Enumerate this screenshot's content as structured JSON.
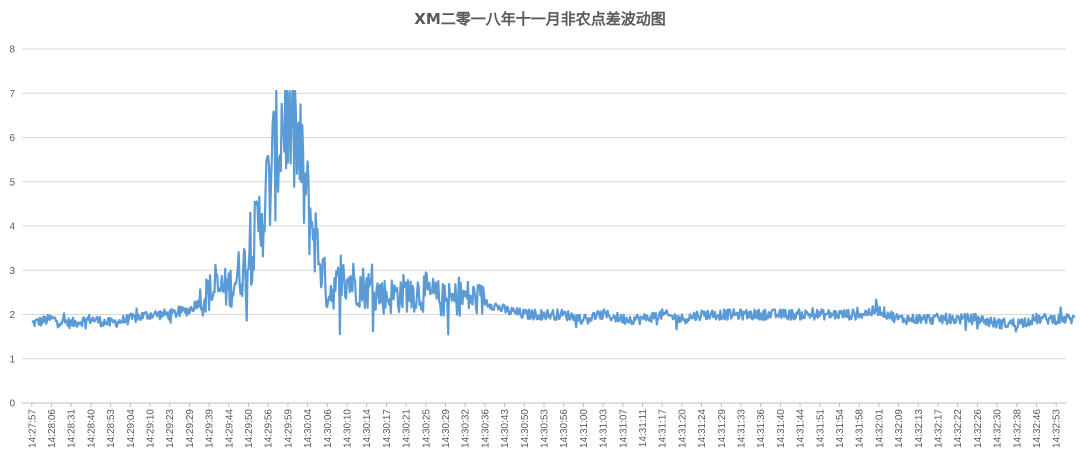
{
  "chart_data": {
    "type": "line",
    "title": "XM二零一八年十一月非农点差波动图",
    "xlabel": "",
    "ylabel": "",
    "ylim": [
      0,
      8
    ],
    "yticks": [
      "0",
      "1",
      "2",
      "3",
      "4",
      "5",
      "6",
      "7",
      "8"
    ],
    "grid": true,
    "legend": "none",
    "colors": {
      "line": "#5B9BD5",
      "grid": "#D9D9D9",
      "axis": "#BFBFBF",
      "text": "#595959"
    },
    "x": [
      "14:27:57",
      "14:28:06",
      "14:28:31",
      "14:28:40",
      "14:28:53",
      "14:29:04",
      "14:29:10",
      "14:29:23",
      "14:29:29",
      "14:29:39",
      "14:29:44",
      "14:29:50",
      "14:29:56",
      "14:29:59",
      "14:30:04",
      "14:30:06",
      "14:30:10",
      "14:30:14",
      "14:30:17",
      "14:30:21",
      "14:30:25",
      "14:30:29",
      "14:30:32",
      "14:30:36",
      "14:30:43",
      "14:30:50",
      "14:30:53",
      "14:30:56",
      "14:31:00",
      "14:31:03",
      "14:31:07",
      "14:31:11",
      "14:31:17",
      "14:31:20",
      "14:31:24",
      "14:31:29",
      "14:31:33",
      "14:31:36",
      "14:31:40",
      "14:31:44",
      "14:31:51",
      "14:31:54",
      "14:31:58",
      "14:32:01",
      "14:32:09",
      "14:32:13",
      "14:32:17",
      "14:32:22",
      "14:32:26",
      "14:32:30",
      "14:32:38",
      "14:32:46",
      "14:32:53"
    ],
    "series": [
      {
        "values": [
          1.8,
          1.9,
          1.8,
          1.9,
          1.8,
          1.9,
          2.0,
          2.0,
          2.1,
          2.5,
          2.6,
          3.2,
          4.8,
          7.0,
          4.5,
          2.5,
          2.8,
          2.6,
          2.4,
          2.5,
          2.5,
          2.3,
          2.4,
          2.3,
          2.1,
          2.0,
          2.0,
          2.0,
          1.9,
          2.0,
          1.9,
          1.9,
          2.0,
          1.9,
          2.0,
          2.0,
          2.0,
          2.0,
          2.0,
          2.0,
          2.0,
          2.0,
          2.0,
          2.1,
          1.9,
          1.9,
          1.9,
          1.9,
          1.9,
          1.8,
          1.8,
          1.9,
          1.9
        ]
      }
    ]
  }
}
